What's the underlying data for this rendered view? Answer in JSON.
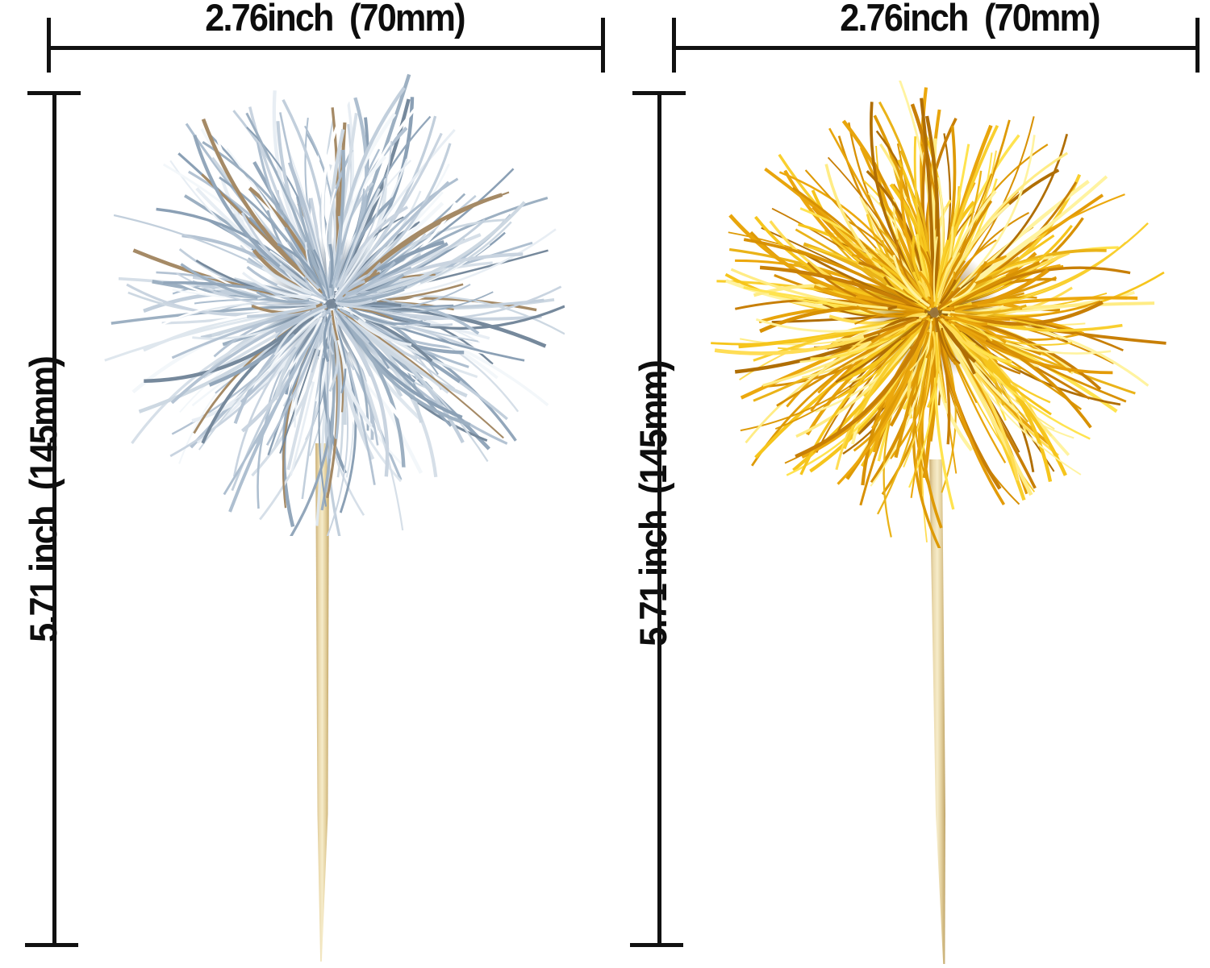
{
  "annotation": {
    "color": "#111111"
  },
  "figures": [
    {
      "width_label": "2.76inch  (70mm)",
      "height_label": "5.71 inch  (145mm)",
      "tinsel_palette": [
        "#c9d4e0",
        "#b4c3d3",
        "#dfe7ee",
        "#9db0c2",
        "#f3f7fa",
        "#8ba0b5",
        "#cdd8e2",
        "#aebfd0",
        "#e8eef4",
        "#76899c",
        "#b4c3d3",
        "#a58a66",
        "#d6dfe8",
        "#c2cfdc",
        "#ffffff",
        "#93a7bb"
      ],
      "tinsel_center_color": "#51667c",
      "stick_gradient": [
        "#c9ad74",
        "#ead9ac",
        "#f6ecca",
        "#e3cf9c",
        "#bfa468"
      ]
    },
    {
      "width_label": "2.76inch  (70mm)",
      "height_label": "5.71 inch  (145mm)",
      "tinsel_palette": [
        "#eca80d",
        "#f6c51c",
        "#d89104",
        "#ffdd55",
        "#c87f06",
        "#ffec85",
        "#e8a50c",
        "#b06e04",
        "#f9cf2e",
        "#e39b08",
        "#f6c51c",
        "#ffe34f",
        "#d89104",
        "#eab318",
        "#fff3a0",
        "#de9a06"
      ],
      "tinsel_center_color": "#7a4c04",
      "stick_gradient": [
        "#c9ad74",
        "#ead9ac",
        "#f6ecca",
        "#e3cf9c",
        "#bfa468"
      ]
    }
  ]
}
